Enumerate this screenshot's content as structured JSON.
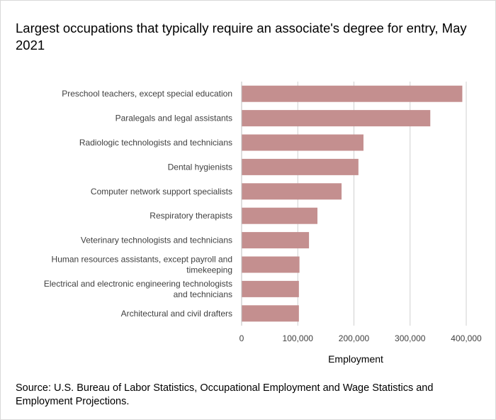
{
  "title": "Largest occupations that typically require an associate's degree for entry, May 2021",
  "source": "Source: U.S. Bureau of Labor Statistics, Occupational Employment and Wage Statistics and Employment Projections.",
  "colors": {
    "bar": "#c48f8f",
    "grid": "#d0d0d0",
    "axis_line": "#bfbfbf"
  },
  "chart_data": {
    "type": "bar",
    "orientation": "horizontal",
    "title": "Largest occupations that typically require an associate's degree for entry, May 2021",
    "xlabel": "Employment",
    "ylabel": "",
    "xlim": [
      0,
      400000
    ],
    "grid": true,
    "tick_values": [
      0,
      100000,
      200000,
      300000,
      400000
    ],
    "tick_labels": [
      "0",
      "100,000",
      "200,000",
      "300,000",
      "400,000"
    ],
    "categories": [
      [
        "Preschool teachers, except special education"
      ],
      [
        "Paralegals and legal assistants"
      ],
      [
        "Radiologic technologists and technicians"
      ],
      [
        "Dental hygienists"
      ],
      [
        "Computer network support specialists"
      ],
      [
        "Respiratory therapists"
      ],
      [
        "Veterinary technologists and technicians"
      ],
      [
        "Human resources assistants, except payroll and",
        "timekeeping"
      ],
      [
        "Electrical and electronic engineering technologists",
        "and technicians"
      ],
      [
        "Architectural and civil drafters"
      ]
    ],
    "values": [
      393000,
      336000,
      217000,
      208000,
      178000,
      135000,
      120000,
      103000,
      102000,
      102000
    ]
  }
}
